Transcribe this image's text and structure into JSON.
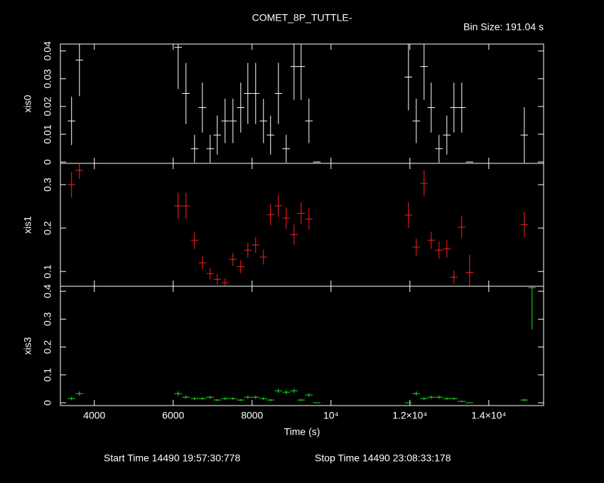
{
  "chart_data": {
    "type": "errorbar",
    "title": "COMET_8P_TUTTLE-",
    "subtitle": "Bin Size: 191.04 s",
    "x_label": "Time (s)",
    "footer": [
      "Start Time 14490 19:57:30:778",
      "Stop Time 14490 23:08:33:178"
    ],
    "x": [
      3423,
      3622,
      6126,
      6324,
      6541,
      6739,
      6937,
      7117,
      7315,
      7514,
      7712,
      7892,
      8090,
      8288,
      8468,
      8667,
      8865,
      9063,
      9243,
      9441,
      9640,
      11964,
      12162,
      12360,
      12541,
      12739,
      12937,
      13117,
      13315,
      13514,
      14901,
      15099
    ],
    "xlim": [
      3140,
      15390
    ],
    "xticks": [
      4000,
      6000,
      8000,
      {
        "value": 10000,
        "label": "10⁴"
      },
      {
        "value": 12000,
        "label": "1.2×10⁴"
      },
      {
        "value": 14000,
        "label": "1.4×10⁴"
      }
    ],
    "panels": [
      {
        "ylim": [
          -0.0005,
          0.0425
        ],
        "yticks": [
          0,
          0.01,
          0.02,
          0.03,
          0.04
        ],
        "series": [
          {
            "name": "xis0",
            "color": "#ffffff",
            "values": [
              0.0148,
              0.0367,
              0.0413,
              0.0247,
              0.0048,
              0.0196,
              0.0048,
              0.0097,
              0.0148,
              0.0148,
              0.0196,
              0.0247,
              0.0247,
              0.0148,
              0.0097,
              0.0247,
              0.0048,
              0.0344,
              0.0344,
              0.0148,
              0,
              0.0306,
              0.0148,
              0.0344,
              0.0196,
              0.0048,
              0.0097,
              0.0196,
              0.0196,
              0,
              0.0097,
              null
            ],
            "errors": [
              0.0087,
              0.013,
              0.015,
              0.011,
              0.005,
              0.009,
              0.005,
              0.007,
              0.008,
              0.008,
              0.009,
              0.011,
              0.011,
              0.008,
              0.007,
              0.011,
              0.005,
              0.012,
              0.012,
              0.008,
              0,
              0.012,
              0.008,
              0.012,
              0.009,
              0.005,
              0.007,
              0.009,
              0.009,
              0,
              0.01,
              null
            ]
          }
        ]
      },
      {
        "ylim": [
          0.066,
          0.349
        ],
        "yticks": [
          0.1,
          0.2,
          0.3
        ],
        "series": [
          {
            "name": "xis1",
            "color": "#ff2020",
            "values": [
              0.3,
              0.333,
              0.251,
              0.251,
              0.172,
              0.12,
              0.095,
              0.082,
              0.074,
              0.128,
              0.111,
              0.149,
              0.161,
              0.133,
              0.231,
              0.251,
              0.223,
              0.185,
              0.234,
              0.221,
              null,
              0.23,
              0.156,
              0.303,
              0.172,
              0.149,
              0.152,
              0.087,
              0.202,
              0.098,
              0.208,
              null
            ],
            "errors": [
              0.03,
              0.02,
              0.03,
              0.03,
              0.02,
              0.015,
              0.013,
              0.012,
              0.01,
              0.015,
              0.015,
              0.017,
              0.018,
              0.017,
              0.025,
              0.025,
              0.025,
              0.023,
              0.025,
              0.025,
              null,
              0.03,
              0.02,
              0.03,
              0.02,
              0.02,
              0.02,
              0.015,
              0.025,
              0.04,
              0.03,
              null
            ]
          }
        ]
      },
      {
        "ylim": [
          -0.01,
          0.418
        ],
        "yticks": [
          0,
          0.1,
          0.2,
          0.3,
          0.4
        ],
        "series": [
          {
            "name": "xis3",
            "color": "#20e020",
            "values": [
              0.015,
              0.033,
              0.033,
              0.02,
              0.015,
              0.015,
              0.02,
              0.01,
              0.015,
              0.015,
              0.01,
              0.02,
              0.02,
              0.015,
              0.01,
              0.043,
              0.038,
              0.043,
              0.01,
              0.028,
              0,
              0,
              0.033,
              0.015,
              0.02,
              0.02,
              0.015,
              0.015,
              0.005,
              0,
              0.01,
              0.413
            ],
            "errors": [
              0.006,
              0.008,
              0.008,
              0.006,
              0.005,
              0.005,
              0.006,
              0.004,
              0.005,
              0.005,
              0.004,
              0.006,
              0.006,
              0.005,
              0.004,
              0.008,
              0.008,
              0.008,
              0.004,
              0.007,
              0,
              0,
              0.008,
              0.005,
              0.006,
              0.006,
              0.005,
              0.005,
              0.003,
              0,
              0.005,
              0.15
            ]
          }
        ]
      }
    ]
  }
}
